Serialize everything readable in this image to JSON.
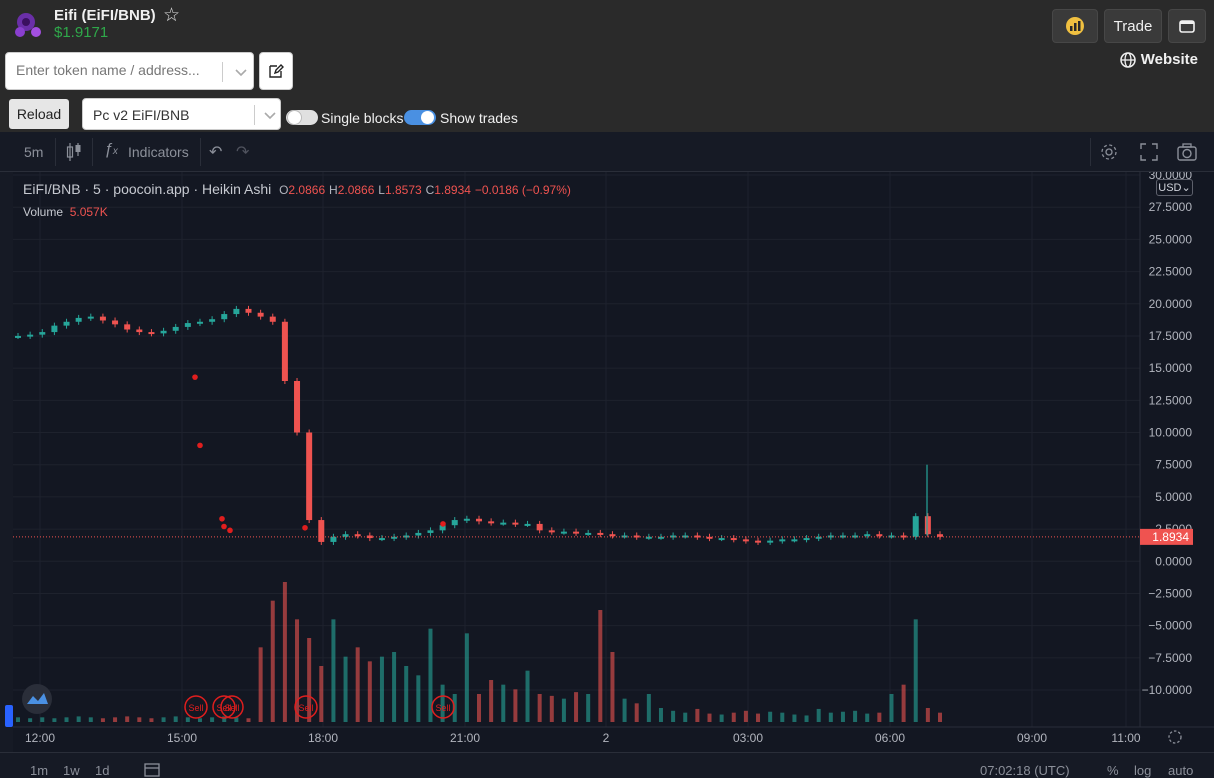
{
  "header": {
    "title": "Eifi (EiFI/BNB)",
    "price": "$1.9171",
    "trade_label": "Trade",
    "website_label": "Website"
  },
  "search": {
    "placeholder": "Enter token name / address..."
  },
  "controls": {
    "reload_label": "Reload",
    "pair_selected": "Pc v2 EiFI/BNB",
    "single_blocks_label": "Single blocks",
    "single_blocks_on": false,
    "show_trades_label": "Show trades",
    "show_trades_on": true
  },
  "toolbar": {
    "interval": "5m",
    "indicators_label": "Indicators"
  },
  "legend": {
    "symbol": "EiFI/BNB",
    "interval": "5",
    "source": "poocoin.app",
    "style": "Heikin Ashi",
    "o_label": "O",
    "o": "2.0866",
    "h_label": "H",
    "h": "2.0866",
    "l_label": "L",
    "l": "1.8573",
    "c_label": "C",
    "c": "1.8934",
    "change": "−0.0186 (−0.97%)",
    "volume_label": "Volume",
    "volume": "5.057K",
    "currency": "USD"
  },
  "price_axis": {
    "ticks": [
      "30.0000",
      "27.5000",
      "25.0000",
      "22.5000",
      "20.0000",
      "17.5000",
      "15.0000",
      "12.5000",
      "10.0000",
      "7.5000",
      "5.0000",
      "2.5000",
      "0.0000",
      "−2.5000",
      "−5.0000",
      "−7.5000",
      "−10.0000"
    ],
    "tick_values": [
      30,
      27.5,
      25,
      22.5,
      20,
      17.5,
      15,
      12.5,
      10,
      7.5,
      5,
      2.5,
      0,
      -2.5,
      -5,
      -7.5,
      -10
    ],
    "last_price": "1.8934",
    "last_price_value": 1.8934
  },
  "time_axis": {
    "ticks": [
      "12:00",
      "15:00",
      "18:00",
      "21:00",
      "2",
      "03:00",
      "06:00",
      "09:00",
      "11:00"
    ]
  },
  "trade_markers": [
    "Sell",
    "Sell",
    "Sell",
    "Sell",
    "Sell"
  ],
  "bottom": {
    "ranges": [
      "1m",
      "1w",
      "1d"
    ],
    "clock": "07:02:18 (UTC)",
    "pct": "%",
    "log": "log",
    "auto": "auto"
  },
  "chart_data": {
    "type": "candlestick",
    "title": "EiFI/BNB · 5 · poocoin.app · Heikin Ashi",
    "ylim": [
      -12,
      30
    ],
    "x_labels": [
      "12:00",
      "15:00",
      "18:00",
      "21:00",
      "2",
      "03:00",
      "06:00",
      "09:00",
      "11:00"
    ],
    "price_series": [
      17.5,
      17.6,
      17.8,
      18.3,
      18.6,
      18.9,
      19.0,
      18.7,
      18.4,
      18.0,
      17.8,
      17.7,
      17.9,
      18.2,
      18.5,
      18.6,
      18.8,
      19.2,
      19.6,
      19.3,
      19.0,
      18.6,
      14.0,
      10.0,
      3.2,
      1.5,
      1.9,
      2.1,
      2.0,
      1.8,
      1.8,
      1.9,
      2.0,
      2.2,
      2.4,
      2.8,
      3.2,
      3.3,
      3.1,
      3.0,
      3.0,
      2.9,
      2.9,
      2.4,
      2.3,
      2.3,
      2.2,
      2.2,
      2.1,
      2.0,
      2.0,
      1.9,
      1.9,
      1.9,
      2.0,
      2.0,
      1.9,
      1.8,
      1.8,
      1.7,
      1.6,
      1.5,
      1.6,
      1.7,
      1.7,
      1.8,
      1.9,
      2.0,
      2.0,
      2.0,
      2.1,
      2.0,
      2.0,
      1.9,
      3.5,
      2.1,
      1.9
    ],
    "volume_series": [
      5,
      4,
      5,
      4,
      5,
      6,
      5,
      4,
      5,
      6,
      5,
      4,
      5,
      6,
      5,
      4,
      5,
      6,
      5,
      4,
      80,
      130,
      150,
      110,
      90,
      60,
      110,
      70,
      80,
      65,
      70,
      75,
      60,
      50,
      100,
      40,
      30,
      95,
      30,
      45,
      40,
      35,
      55,
      30,
      28,
      25,
      32,
      30,
      120,
      75,
      25,
      20,
      30,
      15,
      12,
      10,
      14,
      9,
      8,
      10,
      12,
      9,
      11,
      10,
      8,
      7,
      14,
      10,
      11,
      12,
      9,
      10,
      30,
      40,
      110,
      15,
      10
    ],
    "volume_colors_hint": "mixed green/red by candle direction"
  }
}
